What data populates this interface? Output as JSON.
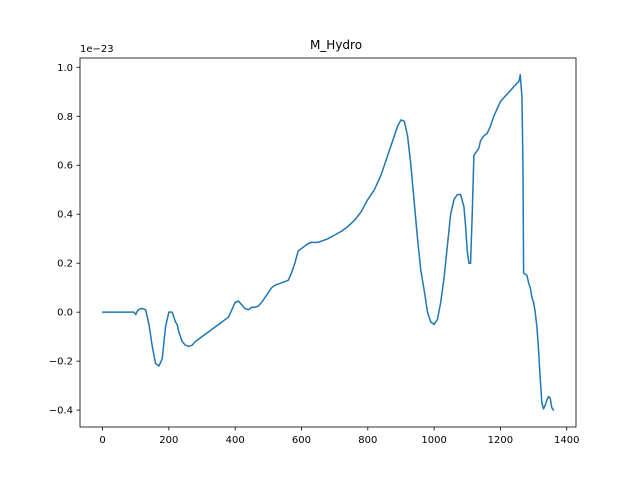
{
  "chart_data": {
    "type": "line",
    "title": "M_Hydro",
    "xlabel": "",
    "ylabel": "",
    "offset_label": "1e−23",
    "xlim": [
      -68,
      1428
    ],
    "ylim": [
      -0.469,
      1.038
    ],
    "x_ticks": [
      0,
      200,
      400,
      600,
      800,
      1000,
      1200,
      1400
    ],
    "x_tick_labels": [
      "0",
      "200",
      "400",
      "600",
      "800",
      "1000",
      "1200",
      "1400"
    ],
    "y_ticks": [
      -0.4,
      -0.2,
      0.0,
      0.2,
      0.4,
      0.6,
      0.8,
      1.0
    ],
    "y_tick_labels": [
      "−0.4",
      "−0.2",
      "0.0",
      "0.2",
      "0.4",
      "0.6",
      "0.8",
      "1.0"
    ],
    "grid": false,
    "line_color": "#1f77b4",
    "series": [
      {
        "x": [
          0,
          50,
          95,
          100,
          105,
          110,
          120,
          130,
          140,
          150,
          160,
          170,
          180,
          190,
          200,
          210,
          220,
          225,
          230,
          240,
          250,
          260,
          270,
          280,
          290,
          300,
          320,
          340,
          360,
          380,
          390,
          400,
          410,
          420,
          430,
          440,
          450,
          460,
          470,
          480,
          490,
          500,
          510,
          520,
          540,
          560,
          570,
          580,
          590,
          600,
          610,
          620,
          630,
          640,
          650,
          660,
          680,
          700,
          720,
          740,
          760,
          780,
          800,
          820,
          840,
          860,
          880,
          890,
          900,
          910,
          920,
          930,
          940,
          950,
          960,
          970,
          980,
          990,
          1000,
          1010,
          1020,
          1030,
          1040,
          1050,
          1060,
          1070,
          1080,
          1090,
          1095,
          1100,
          1105,
          1110,
          1115,
          1120,
          1130,
          1135,
          1140,
          1150,
          1160,
          1170,
          1180,
          1190,
          1200,
          1210,
          1220,
          1230,
          1240,
          1250,
          1255,
          1258,
          1260,
          1262,
          1265,
          1268,
          1270,
          1275,
          1280,
          1285,
          1290,
          1295,
          1300,
          1305,
          1310,
          1315,
          1320,
          1325,
          1330,
          1335,
          1340,
          1345,
          1350,
          1355,
          1360
        ],
        "y": [
          0.0,
          0.0,
          0.0,
          -0.01,
          0.005,
          0.012,
          0.015,
          0.01,
          -0.05,
          -0.14,
          -0.21,
          -0.22,
          -0.19,
          -0.06,
          0.0,
          0.0,
          -0.04,
          -0.05,
          -0.08,
          -0.12,
          -0.135,
          -0.14,
          -0.135,
          -0.12,
          -0.11,
          -0.1,
          -0.08,
          -0.06,
          -0.04,
          -0.02,
          0.01,
          0.04,
          0.045,
          0.03,
          0.015,
          0.01,
          0.02,
          0.02,
          0.025,
          0.04,
          0.06,
          0.08,
          0.1,
          0.11,
          0.12,
          0.13,
          0.16,
          0.2,
          0.25,
          0.26,
          0.27,
          0.28,
          0.285,
          0.285,
          0.285,
          0.29,
          0.3,
          0.315,
          0.33,
          0.35,
          0.375,
          0.41,
          0.46,
          0.5,
          0.56,
          0.64,
          0.72,
          0.76,
          0.785,
          0.78,
          0.72,
          0.6,
          0.45,
          0.3,
          0.17,
          0.09,
          0.0,
          -0.04,
          -0.05,
          -0.03,
          0.04,
          0.14,
          0.27,
          0.4,
          0.46,
          0.48,
          0.48,
          0.43,
          0.35,
          0.25,
          0.2,
          0.2,
          0.4,
          0.64,
          0.66,
          0.67,
          0.7,
          0.72,
          0.73,
          0.76,
          0.8,
          0.83,
          0.86,
          0.875,
          0.89,
          0.905,
          0.92,
          0.935,
          0.94,
          0.955,
          0.97,
          0.93,
          0.88,
          0.6,
          0.16,
          0.155,
          0.15,
          0.12,
          0.1,
          0.06,
          0.04,
          0.0,
          -0.06,
          -0.15,
          -0.27,
          -0.37,
          -0.395,
          -0.38,
          -0.36,
          -0.345,
          -0.35,
          -0.39,
          -0.4
        ]
      }
    ]
  }
}
